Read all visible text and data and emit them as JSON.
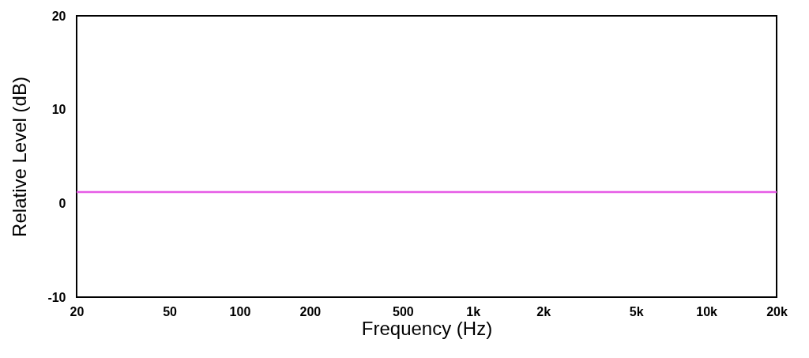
{
  "chart_data": {
    "type": "line",
    "xlabel": "Frequency (Hz)",
    "ylabel": "Relative Level (dB)",
    "x": [
      20,
      20000
    ],
    "series": [
      {
        "color": "#e65ce6",
        "values": [
          1.2,
          1.2
        ]
      }
    ],
    "log": "x",
    "xlim": [
      20,
      20000
    ],
    "ylim": [
      -10,
      20
    ],
    "xticks": [
      20,
      50,
      100,
      200,
      500,
      {
        "value": 1000,
        "label": "1k"
      },
      {
        "value": 2000,
        "label": "2k"
      },
      {
        "value": 5000,
        "label": "5k"
      },
      {
        "value": 10000,
        "label": "10k"
      },
      {
        "value": 20000,
        "label": "20k"
      }
    ],
    "yticks": [
      -10,
      0,
      10,
      20
    ],
    "grid": false,
    "marker": "none",
    "line_style": "solid"
  }
}
